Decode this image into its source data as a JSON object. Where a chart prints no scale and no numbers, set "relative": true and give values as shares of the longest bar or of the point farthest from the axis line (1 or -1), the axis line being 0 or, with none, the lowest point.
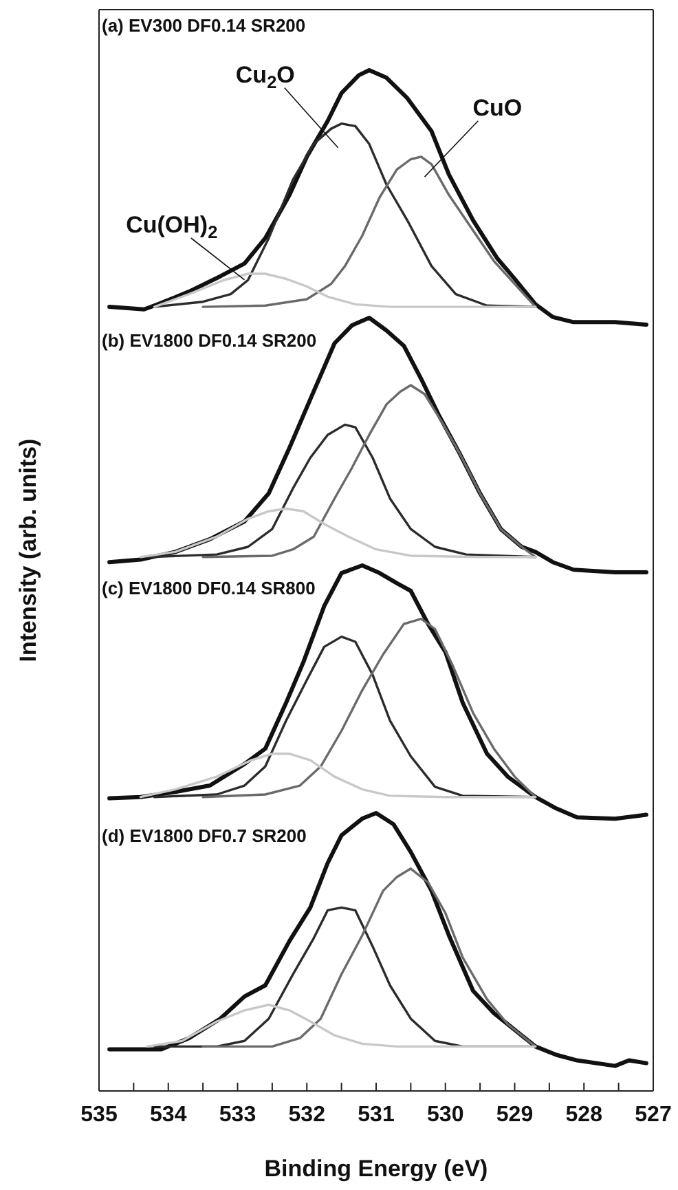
{
  "chart_data": [
    {
      "type": "line",
      "title": "(a) EV300 DF0.14 SR200",
      "ylabel": "Intensity (arb. units)",
      "relative": true,
      "xlim": [
        535,
        527
      ],
      "tick_labels": false,
      "series": [
        {
          "color": "#111111",
          "x": [
            534.85,
            534.35,
            534.15,
            533.7,
            533.25,
            532.9,
            532.6,
            532.25,
            532.0,
            531.7,
            531.5,
            531.25,
            531.1,
            530.85,
            530.55,
            530.2,
            529.95,
            529.6,
            529.25,
            529.0,
            528.7,
            528.45,
            528.15,
            527.55,
            527.1
          ],
          "values": [
            0.07,
            0.06,
            0.08,
            0.13,
            0.19,
            0.24,
            0.34,
            0.51,
            0.66,
            0.8,
            0.91,
            0.98,
            1.0,
            0.97,
            0.89,
            0.76,
            0.59,
            0.41,
            0.26,
            0.18,
            0.08,
            0.03,
            0.01,
            0.01,
            0
          ]
        },
        {
          "name": "Cu$_{2}$O",
          "color": "#2b2b2b",
          "x": [
            534.2,
            533.5,
            533.1,
            532.85,
            532.55,
            532.2,
            531.9,
            531.65,
            531.5,
            531.3,
            531.1,
            530.85,
            530.55,
            530.2,
            529.85,
            529.4,
            528.7
          ],
          "values": [
            0.07,
            0.09,
            0.12,
            0.175,
            0.34,
            0.57,
            0.71,
            0.77,
            0.79,
            0.78,
            0.71,
            0.55,
            0.41,
            0.23,
            0.12,
            0.075,
            0.07
          ]
        },
        {
          "name": "CuO",
          "color": "#6a6a6a",
          "x": [
            533.5,
            532.6,
            532.0,
            531.65,
            531.45,
            531.2,
            530.95,
            530.7,
            530.5,
            530.35,
            530.2,
            529.95,
            529.65,
            529.3,
            529.0,
            528.7
          ],
          "values": [
            0.07,
            0.075,
            0.1,
            0.16,
            0.23,
            0.35,
            0.5,
            0.61,
            0.65,
            0.66,
            0.63,
            0.51,
            0.39,
            0.25,
            0.16,
            0.07
          ]
        },
        {
          "name": "Cu(OH)$_{2}$",
          "color": "#c8c8c8",
          "x": [
            534.2,
            533.7,
            533.2,
            532.85,
            532.6,
            532.3,
            532.0,
            531.7,
            531.3,
            530.8,
            528.7
          ],
          "values": [
            0.07,
            0.12,
            0.175,
            0.2,
            0.2,
            0.18,
            0.15,
            0.11,
            0.08,
            0.07,
            0.07
          ]
        }
      ]
    },
    {
      "type": "line",
      "title": "(b) EV1800 DF0.14 SR200",
      "relative": true,
      "xlim": [
        535,
        527
      ],
      "tick_labels": false,
      "series": [
        {
          "color": "#111111",
          "x": [
            534.85,
            534.4,
            533.9,
            533.4,
            532.9,
            532.55,
            532.25,
            531.95,
            531.6,
            531.35,
            531.1,
            530.85,
            530.6,
            530.35,
            530.1,
            529.8,
            529.5,
            529.2,
            528.9,
            528.7,
            528.45,
            528.15,
            527.55,
            527.1
          ],
          "values": [
            0.04,
            0.05,
            0.08,
            0.13,
            0.2,
            0.31,
            0.49,
            0.68,
            0.9,
            0.97,
            1.0,
            0.95,
            0.89,
            0.76,
            0.62,
            0.47,
            0.31,
            0.17,
            0.1,
            0.08,
            0.04,
            0.01,
            0,
            0
          ]
        },
        {
          "color": "#2b2b2b",
          "x": [
            534.3,
            533.3,
            532.85,
            532.5,
            532.2,
            531.95,
            531.7,
            531.45,
            531.3,
            531.05,
            530.8,
            530.5,
            530.15,
            529.7,
            528.7
          ],
          "values": [
            0.06,
            0.07,
            0.1,
            0.17,
            0.33,
            0.45,
            0.54,
            0.58,
            0.57,
            0.45,
            0.29,
            0.17,
            0.1,
            0.07,
            0.06
          ]
        },
        {
          "color": "#6a6a6a",
          "x": [
            533.5,
            532.5,
            532.2,
            531.9,
            531.6,
            531.35,
            531.1,
            530.85,
            530.65,
            530.5,
            530.3,
            530.05,
            529.8,
            529.5,
            529.2,
            528.9,
            528.7
          ],
          "values": [
            0.06,
            0.065,
            0.09,
            0.14,
            0.29,
            0.41,
            0.54,
            0.66,
            0.71,
            0.735,
            0.7,
            0.59,
            0.47,
            0.31,
            0.17,
            0.1,
            0.06
          ]
        },
        {
          "color": "#c8c8c8",
          "x": [
            534.4,
            533.9,
            533.3,
            532.85,
            532.55,
            532.3,
            532.05,
            531.75,
            531.4,
            531.0,
            530.5,
            529.5,
            528.7
          ],
          "values": [
            0.06,
            0.08,
            0.14,
            0.21,
            0.24,
            0.25,
            0.24,
            0.19,
            0.14,
            0.09,
            0.065,
            0.06,
            0.06
          ]
        }
      ]
    },
    {
      "type": "line",
      "title": "(c) EV1800 DF0.14 SR800",
      "relative": true,
      "xlim": [
        535,
        527
      ],
      "tick_labels": false,
      "series": [
        {
          "color": "#111111",
          "x": [
            534.85,
            534.4,
            533.9,
            533.4,
            532.9,
            532.6,
            532.3,
            532.05,
            531.75,
            531.5,
            531.2,
            530.95,
            530.7,
            530.5,
            530.25,
            530.0,
            529.75,
            529.4,
            529.1,
            528.7,
            528.4,
            528.1,
            527.55,
            527.1
          ],
          "values": [
            0.085,
            0.09,
            0.11,
            0.135,
            0.22,
            0.28,
            0.46,
            0.62,
            0.84,
            0.97,
            1.0,
            0.97,
            0.93,
            0.9,
            0.77,
            0.66,
            0.46,
            0.26,
            0.17,
            0.09,
            0.045,
            0.01,
            0.005,
            0.02
          ]
        },
        {
          "color": "#2b2b2b",
          "x": [
            534.2,
            533.3,
            532.9,
            532.6,
            532.3,
            532.0,
            531.75,
            531.5,
            531.3,
            531.05,
            530.8,
            530.5,
            530.15,
            529.75,
            528.7
          ],
          "values": [
            0.09,
            0.1,
            0.135,
            0.21,
            0.39,
            0.55,
            0.68,
            0.72,
            0.7,
            0.57,
            0.39,
            0.25,
            0.13,
            0.095,
            0.09
          ]
        },
        {
          "color": "#6a6a6a",
          "x": [
            533.5,
            532.6,
            532.1,
            531.8,
            531.5,
            531.2,
            530.9,
            530.6,
            530.35,
            530.15,
            529.9,
            529.6,
            529.3,
            529.0,
            528.7
          ],
          "values": [
            0.09,
            0.1,
            0.135,
            0.21,
            0.35,
            0.51,
            0.65,
            0.77,
            0.79,
            0.75,
            0.61,
            0.42,
            0.28,
            0.17,
            0.09
          ]
        },
        {
          "color": "#c8c8c8",
          "x": [
            534.4,
            533.9,
            533.3,
            532.8,
            532.5,
            532.25,
            531.95,
            531.6,
            531.2,
            530.8,
            530.0,
            528.7
          ],
          "values": [
            0.09,
            0.12,
            0.17,
            0.235,
            0.26,
            0.26,
            0.235,
            0.17,
            0.12,
            0.095,
            0.09,
            0.09
          ]
        }
      ]
    },
    {
      "type": "line",
      "title": "(d) EV1800 DF0.7 SR200",
      "xlabel": "Binding Energy (eV)",
      "relative": true,
      "xlim": [
        535,
        527
      ],
      "tick_labels": "x",
      "xticks": [
        535,
        {
          "value": 534.5,
          "label": null
        },
        534,
        {
          "value": 533.5,
          "label": null
        },
        533,
        {
          "value": 532.5,
          "label": null
        },
        532,
        {
          "value": 531.5,
          "label": null
        },
        531,
        {
          "value": 530.5,
          "label": null
        },
        530,
        {
          "value": 529.5,
          "label": null
        },
        529,
        {
          "value": 528.5,
          "label": null
        },
        528,
        {
          "value": 527.5,
          "label": null
        },
        527
      ],
      "series": [
        {
          "color": "#111111",
          "x": [
            534.85,
            534.4,
            534.1,
            533.7,
            533.25,
            532.9,
            532.6,
            532.25,
            531.95,
            531.7,
            531.5,
            531.2,
            531.0,
            530.75,
            530.5,
            530.2,
            529.95,
            529.6,
            529.3,
            529.0,
            528.7,
            528.4,
            528.1,
            527.55,
            527.35,
            527.1
          ],
          "values": [
            0.15,
            0.15,
            0.15,
            0.19,
            0.26,
            0.34,
            0.38,
            0.54,
            0.66,
            0.82,
            0.92,
            0.98,
            1.0,
            0.96,
            0.86,
            0.72,
            0.56,
            0.36,
            0.28,
            0.22,
            0.16,
            0.13,
            0.11,
            0.09,
            0.11,
            0.1
          ]
        },
        {
          "color": "#2b2b2b",
          "x": [
            534.2,
            533.3,
            532.9,
            532.55,
            532.2,
            531.9,
            531.7,
            531.5,
            531.3,
            531.05,
            530.8,
            530.5,
            530.15,
            529.75,
            528.7
          ],
          "values": [
            0.16,
            0.16,
            0.18,
            0.26,
            0.42,
            0.55,
            0.65,
            0.66,
            0.65,
            0.52,
            0.38,
            0.26,
            0.18,
            0.16,
            0.16
          ]
        },
        {
          "color": "#6a6a6a",
          "x": [
            533.5,
            532.5,
            532.1,
            531.8,
            531.5,
            531.2,
            530.9,
            530.7,
            530.5,
            530.25,
            530.0,
            529.75,
            529.4,
            529.1,
            528.7
          ],
          "values": [
            0.16,
            0.16,
            0.19,
            0.26,
            0.42,
            0.56,
            0.72,
            0.77,
            0.8,
            0.75,
            0.64,
            0.48,
            0.33,
            0.24,
            0.16
          ]
        },
        {
          "color": "#c8c8c8",
          "x": [
            534.3,
            533.8,
            533.3,
            532.9,
            532.55,
            532.25,
            531.95,
            531.6,
            531.2,
            530.7,
            528.7
          ],
          "values": [
            0.16,
            0.18,
            0.25,
            0.29,
            0.31,
            0.29,
            0.25,
            0.2,
            0.17,
            0.16,
            0.16
          ]
        }
      ]
    }
  ]
}
